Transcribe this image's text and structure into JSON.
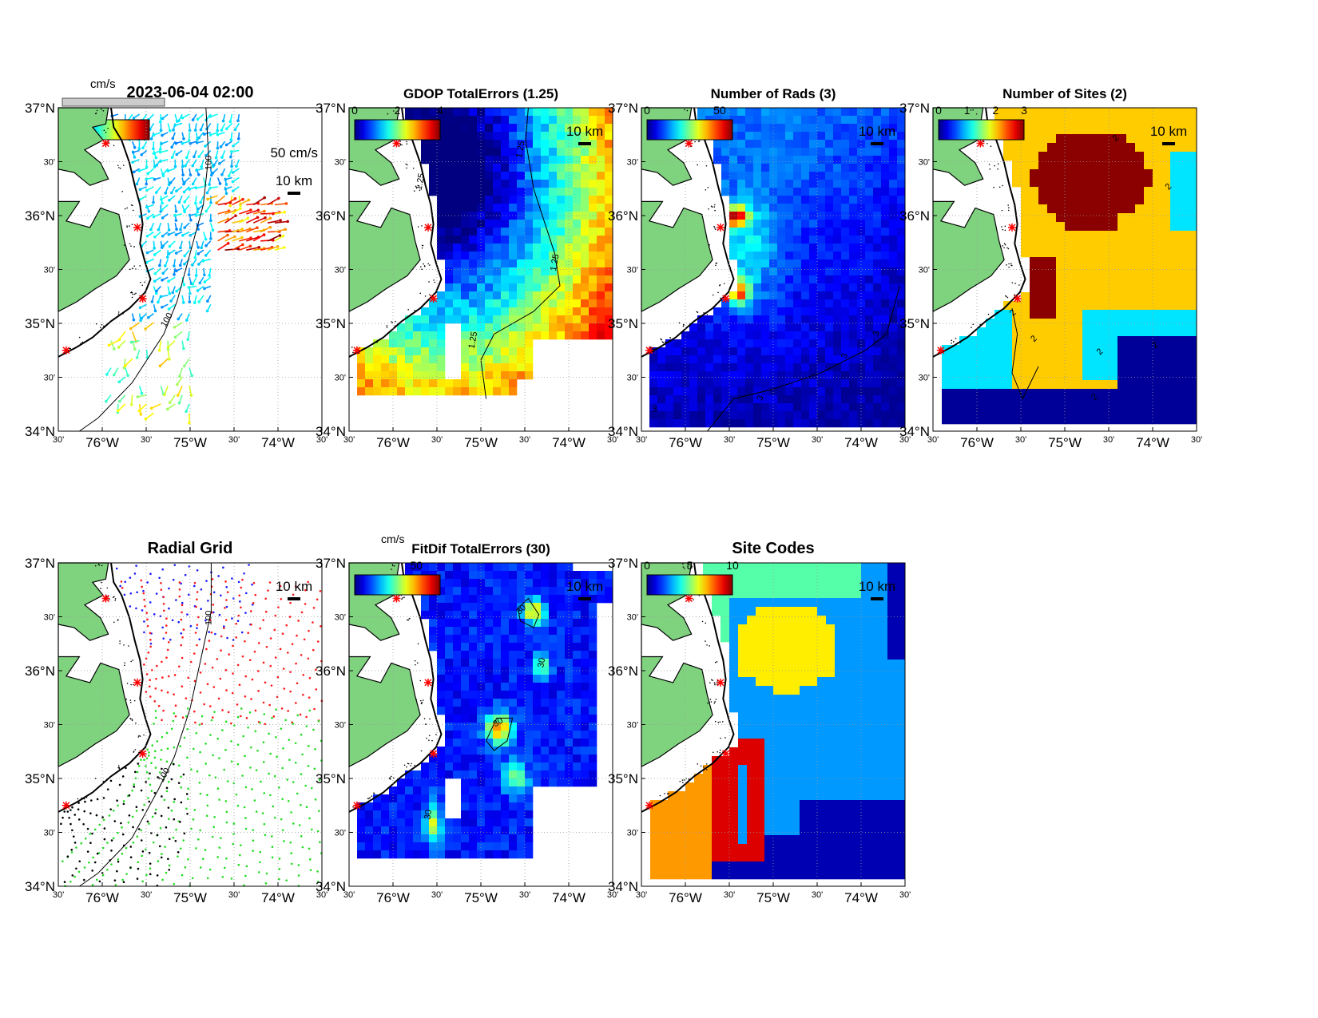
{
  "figure": {
    "timestamp": "2023-06-04 02:00",
    "unit_cms": "cm/s",
    "vector_scale_label": "50 cm/s",
    "distance_scale_label": "10 km",
    "lat_labels": [
      "37°N",
      "30'",
      "36°N",
      "30'",
      "35°N",
      "30'",
      "34°N"
    ],
    "lon_labels": [
      "30'",
      "76°W",
      "30'",
      "75°W",
      "30'",
      "74°W",
      "30'"
    ],
    "sites": [
      "site-1",
      "site-2",
      "site-3",
      "site-4"
    ]
  },
  "panels": [
    {
      "id": "currents",
      "title": "2023-06-04 02:00",
      "colorbar": {
        "unit": "cm/s",
        "ticks": [],
        "colormap": "jet"
      },
      "contour_labels": [
        "100",
        "100"
      ]
    },
    {
      "id": "gdop",
      "title": "GDOP TotalErrors (1.25)",
      "colorbar": {
        "unit": "",
        "ticks": [
          "0",
          "2",
          "4"
        ],
        "colormap": "jet"
      },
      "contour_labels": [
        "1.25",
        "1.25",
        "1.25",
        "1.25"
      ]
    },
    {
      "id": "num-rads",
      "title": "Number of Rads (3)",
      "colorbar": {
        "unit": "",
        "ticks": [
          "0",
          "50"
        ],
        "colormap": "jet"
      },
      "contour_labels": [
        "3",
        "3",
        "3",
        "3"
      ]
    },
    {
      "id": "num-sites",
      "title": "Number of Sites (2)",
      "colorbar": {
        "unit": "",
        "ticks": [
          "0",
          "1",
          "2",
          "3"
        ],
        "colormap": "jet"
      },
      "contour_labels": [
        "2",
        "2",
        "2",
        "2",
        "2",
        "2",
        "2"
      ]
    },
    {
      "id": "radial-grid",
      "title": "Radial Grid",
      "colorbar": null,
      "contour_labels": [
        "100",
        "100"
      ],
      "site_colors": [
        "#1a1aff",
        "#ff1a1a",
        "#22dd22",
        "#000000"
      ]
    },
    {
      "id": "fitdif",
      "title": "FitDif TotalErrors (30)",
      "colorbar": {
        "unit": "cm/s",
        "ticks": [
          "50"
        ],
        "colormap": "jet"
      },
      "contour_labels": [
        "30",
        "30",
        "30",
        "30"
      ]
    },
    {
      "id": "site-codes",
      "title": "Site Codes",
      "colorbar": {
        "unit": "",
        "ticks": [
          "0",
          "5",
          "10"
        ],
        "colormap": "jet"
      },
      "contour_labels": []
    }
  ],
  "colors": {
    "land": "#7fd37f",
    "site_marker": "#ff0000",
    "codes": {
      "a": "#55ffaa",
      "b": "#ffee00",
      "c": "#0099ff",
      "d": "#0000b3",
      "e": "#ff9900",
      "f": "#dd0000"
    }
  }
}
